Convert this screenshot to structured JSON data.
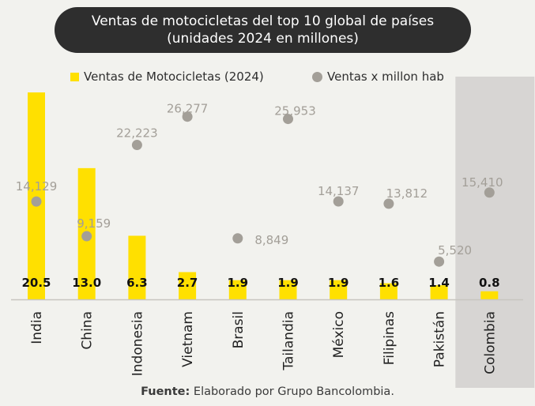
{
  "chart_data": {
    "type": "bar",
    "title": "Ventas de motocicletas del top 10 global de países",
    "subtitle": "(unidades 2024 en millones)",
    "categories": [
      "India",
      "China",
      "Indonesia",
      "Vietnam",
      "Brasil",
      "Tailandia",
      "México",
      "Filipinas",
      "Pakistán",
      "Colombia"
    ],
    "series": [
      {
        "name": "Ventas de Motocicletas (2024)",
        "type": "bar",
        "values": [
          20.5,
          13.0,
          6.3,
          2.7,
          1.9,
          1.9,
          1.9,
          1.6,
          1.4,
          0.8
        ],
        "labels": [
          "20.5",
          "13.0",
          "6.3",
          "2.7",
          "1.9",
          "1.9",
          "1.9",
          "1.6",
          "1.4",
          "0.8"
        ],
        "color": "#ffe000"
      },
      {
        "name": "Ventas x millon hab",
        "type": "scatter",
        "values": [
          14129,
          9159,
          22223,
          26277,
          8849,
          25953,
          14137,
          13812,
          5520,
          15410
        ],
        "labels": [
          "14,129",
          "9,159",
          "22,223",
          "26,277",
          "8,849",
          "25,953",
          "14,137",
          "13,812",
          "5,520",
          "15,410"
        ],
        "color": "#a39f98"
      }
    ],
    "highlighted_category": "Colombia",
    "source_label": "Fuente:",
    "source_text": " Elaborado por Grupo Bancolombia."
  }
}
